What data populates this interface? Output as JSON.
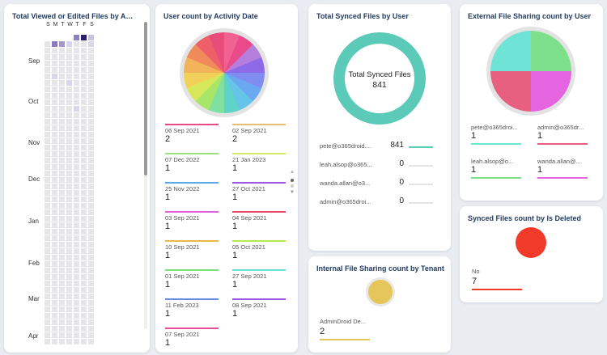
{
  "cards": {
    "heatmap": {
      "title": "Total Viewed or Edited Files by Activi...",
      "weekdays": [
        "S",
        "M",
        "T",
        "W",
        "T",
        "F",
        "S"
      ],
      "months": [
        "Sep",
        "Oct",
        "Nov",
        "Dec",
        "Jan",
        "Feb",
        "Mar",
        "Apr"
      ]
    },
    "user_count": {
      "title": "User count by Activity Date",
      "pie_colors": [
        "#f06292",
        "#e94b8a",
        "#b57edc",
        "#8d6be8",
        "#7f8cf0",
        "#6aa8f2",
        "#64c5e8",
        "#5fd3c8",
        "#7fe0a0",
        "#a8e66a",
        "#d6e85a",
        "#f2d15a",
        "#f2b35a",
        "#f08a5a",
        "#ee5f6a",
        "#e84c7a"
      ],
      "items": [
        {
          "date": "06 Sep 2021",
          "value": "2",
          "color": "#e94b8a"
        },
        {
          "date": "02 Sep 2021",
          "value": "2",
          "color": "#e8c06a"
        },
        {
          "date": "07 Dec 2022",
          "value": "1",
          "color": "#9ee07a"
        },
        {
          "date": "21 Jan 2023",
          "value": "1",
          "color": "#d4e86a"
        },
        {
          "date": "25 Nov 2022",
          "value": "1",
          "color": "#5aa8e8"
        },
        {
          "date": "27 Oct 2021",
          "value": "1",
          "color": "#9a5ae0"
        },
        {
          "date": "03 Sep 2021",
          "value": "1",
          "color": "#e060d8"
        },
        {
          "date": "04 Sep 2021",
          "value": "1",
          "color": "#e84c6a"
        },
        {
          "date": "10 Sep 2021",
          "value": "1",
          "color": "#e8b84a"
        },
        {
          "date": "05 Oct 2021",
          "value": "1",
          "color": "#b8e84a"
        },
        {
          "date": "01 Sep 2021",
          "value": "1",
          "color": "#7ae07a"
        },
        {
          "date": "27 Sep 2021",
          "value": "1",
          "color": "#6ae0d8"
        },
        {
          "date": "11 Feb 2023",
          "value": "1",
          "color": "#6a8ae8"
        },
        {
          "date": "08 Sep 2021",
          "value": "1",
          "color": "#9a5ae0"
        },
        {
          "date": "07 Sep 2021",
          "value": "1",
          "color": "#e84c9a"
        }
      ]
    },
    "synced": {
      "title": "Total Synced Files by User",
      "center_title": "Total Synced Files",
      "center_value": "841",
      "donut_color": "#5ccab8",
      "rows": [
        {
          "user": "pete@o365droid....",
          "value": "841",
          "bar_fraction": 1.0
        },
        {
          "user": "leah.alsop@o365...",
          "value": "0",
          "bar_fraction": 0
        },
        {
          "user": "wanda.allan@o3...",
          "value": "0",
          "bar_fraction": 0
        },
        {
          "user": "admin@o365droi...",
          "value": "0",
          "bar_fraction": 0
        }
      ]
    },
    "external": {
      "title": "External File Sharing count by User",
      "items": [
        {
          "user": "pete@o365droi...",
          "value": "1",
          "color": "#6ee3d6"
        },
        {
          "user": "admin@o365dr...",
          "value": "1",
          "color": "#e8607f"
        },
        {
          "user": "leah.alsop@o...",
          "value": "1",
          "color": "#7ee08a"
        },
        {
          "user": "wanda.allan@...",
          "value": "1",
          "color": "#e565e0"
        }
      ]
    },
    "deleted": {
      "title": "Synced Files count by Is Deleted",
      "label": "No",
      "value": "7",
      "color": "#f23a2a"
    },
    "internal": {
      "title": "Internal File Sharing count by Tenant",
      "label": "AdminDroid De...",
      "value": "2",
      "color": "#e5c65a"
    }
  }
}
